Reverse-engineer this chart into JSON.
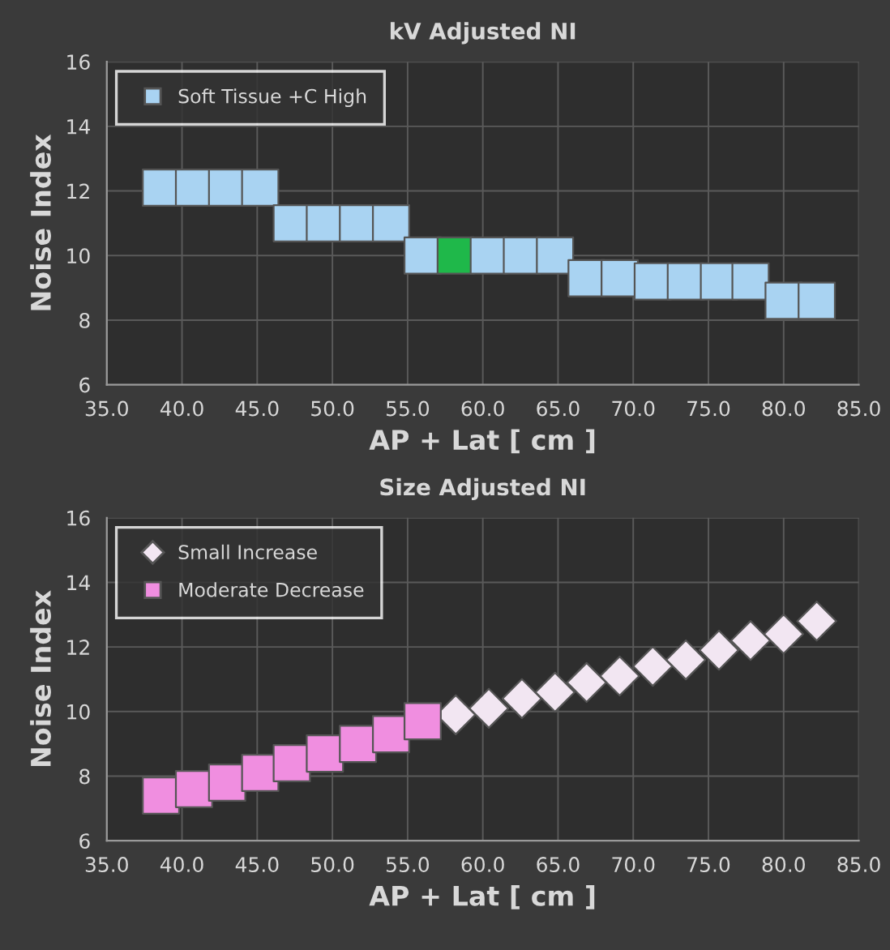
{
  "chart_data": [
    {
      "type": "scatter",
      "title": "kV Adjusted NI",
      "xlabel": "AP + Lat [ cm ]",
      "ylabel": "Noise Index",
      "xlim": [
        35,
        85
      ],
      "ylim": [
        6,
        16
      ],
      "xticks": [
        {
          "value": 35,
          "label": "35.0"
        },
        {
          "value": 40,
          "label": "40.0"
        },
        {
          "value": 45,
          "label": "45.0"
        },
        {
          "value": 50,
          "label": "50.0"
        },
        {
          "value": 55,
          "label": "55.0"
        },
        {
          "value": 60,
          "label": "60.0"
        },
        {
          "value": 65,
          "label": "65.0"
        },
        {
          "value": 70,
          "label": "70.0"
        },
        {
          "value": 75,
          "label": "75.0"
        },
        {
          "value": 80,
          "label": "80.0"
        },
        {
          "value": 85,
          "label": "85.0"
        }
      ],
      "yticks": [
        6,
        8,
        10,
        12,
        14,
        16
      ],
      "grid": true,
      "legend": "top left",
      "marker": "square",
      "series": [
        {
          "name": "Soft Tissue +C High",
          "color": "#a9d3f2",
          "colors": [
            "#a9d3f2",
            "#a9d3f2",
            "#a9d3f2",
            "#a9d3f2",
            "#a9d3f2",
            "#a9d3f2",
            "#a9d3f2",
            "#a9d3f2",
            "#a9d3f2",
            "#1fb84a",
            "#a9d3f2",
            "#a9d3f2",
            "#a9d3f2",
            "#a9d3f2",
            "#a9d3f2",
            "#a9d3f2",
            "#a9d3f2",
            "#a9d3f2",
            "#a9d3f2",
            "#a9d3f2",
            "#a9d3f2"
          ],
          "x": [
            38.6,
            40.8,
            43.0,
            45.2,
            47.3,
            49.5,
            51.7,
            53.9,
            56.0,
            58.2,
            60.4,
            62.6,
            64.8,
            66.9,
            69.1,
            71.3,
            73.5,
            75.7,
            77.8,
            80.0,
            82.2
          ],
          "values": [
            12.1,
            12.1,
            12.1,
            12.1,
            11.0,
            11.0,
            11.0,
            11.0,
            10.0,
            10.0,
            10.0,
            10.0,
            10.0,
            9.3,
            9.3,
            9.2,
            9.2,
            9.2,
            9.2,
            8.6,
            8.6
          ]
        }
      ]
    },
    {
      "type": "scatter",
      "title": "Size Adjusted NI",
      "xlabel": "AP + Lat [ cm ]",
      "ylabel": "Noise Index",
      "xlim": [
        35,
        85
      ],
      "ylim": [
        6,
        16
      ],
      "xticks": [
        {
          "value": 35,
          "label": "35.0"
        },
        {
          "value": 40,
          "label": "40.0"
        },
        {
          "value": 45,
          "label": "45.0"
        },
        {
          "value": 50,
          "label": "50.0"
        },
        {
          "value": 55,
          "label": "55.0"
        },
        {
          "value": 60,
          "label": "60.0"
        },
        {
          "value": 65,
          "label": "65.0"
        },
        {
          "value": 70,
          "label": "70.0"
        },
        {
          "value": 75,
          "label": "75.0"
        },
        {
          "value": 80,
          "label": "80.0"
        },
        {
          "value": 85,
          "label": "85.0"
        }
      ],
      "yticks": [
        6,
        8,
        10,
        12,
        14,
        16
      ],
      "grid": true,
      "legend": "top left",
      "series": [
        {
          "name": "Small Increase",
          "color": "#f2e6f2",
          "marker": "diamond",
          "x": [
            58.2,
            60.4,
            62.6,
            64.8,
            66.9,
            69.1,
            71.3,
            73.5,
            75.7,
            77.8,
            80.0,
            82.2
          ],
          "values": [
            9.9,
            10.1,
            10.4,
            10.6,
            10.9,
            11.1,
            11.4,
            11.6,
            11.9,
            12.2,
            12.4,
            12.8
          ]
        },
        {
          "name": "Moderate Decrease",
          "color": "#f08ee0",
          "marker": "square",
          "x": [
            38.6,
            40.8,
            43.0,
            45.2,
            47.3,
            49.5,
            51.7,
            53.9,
            56.0
          ],
          "values": [
            7.4,
            7.6,
            7.8,
            8.1,
            8.4,
            8.7,
            9.0,
            9.3,
            9.7
          ]
        }
      ]
    }
  ]
}
